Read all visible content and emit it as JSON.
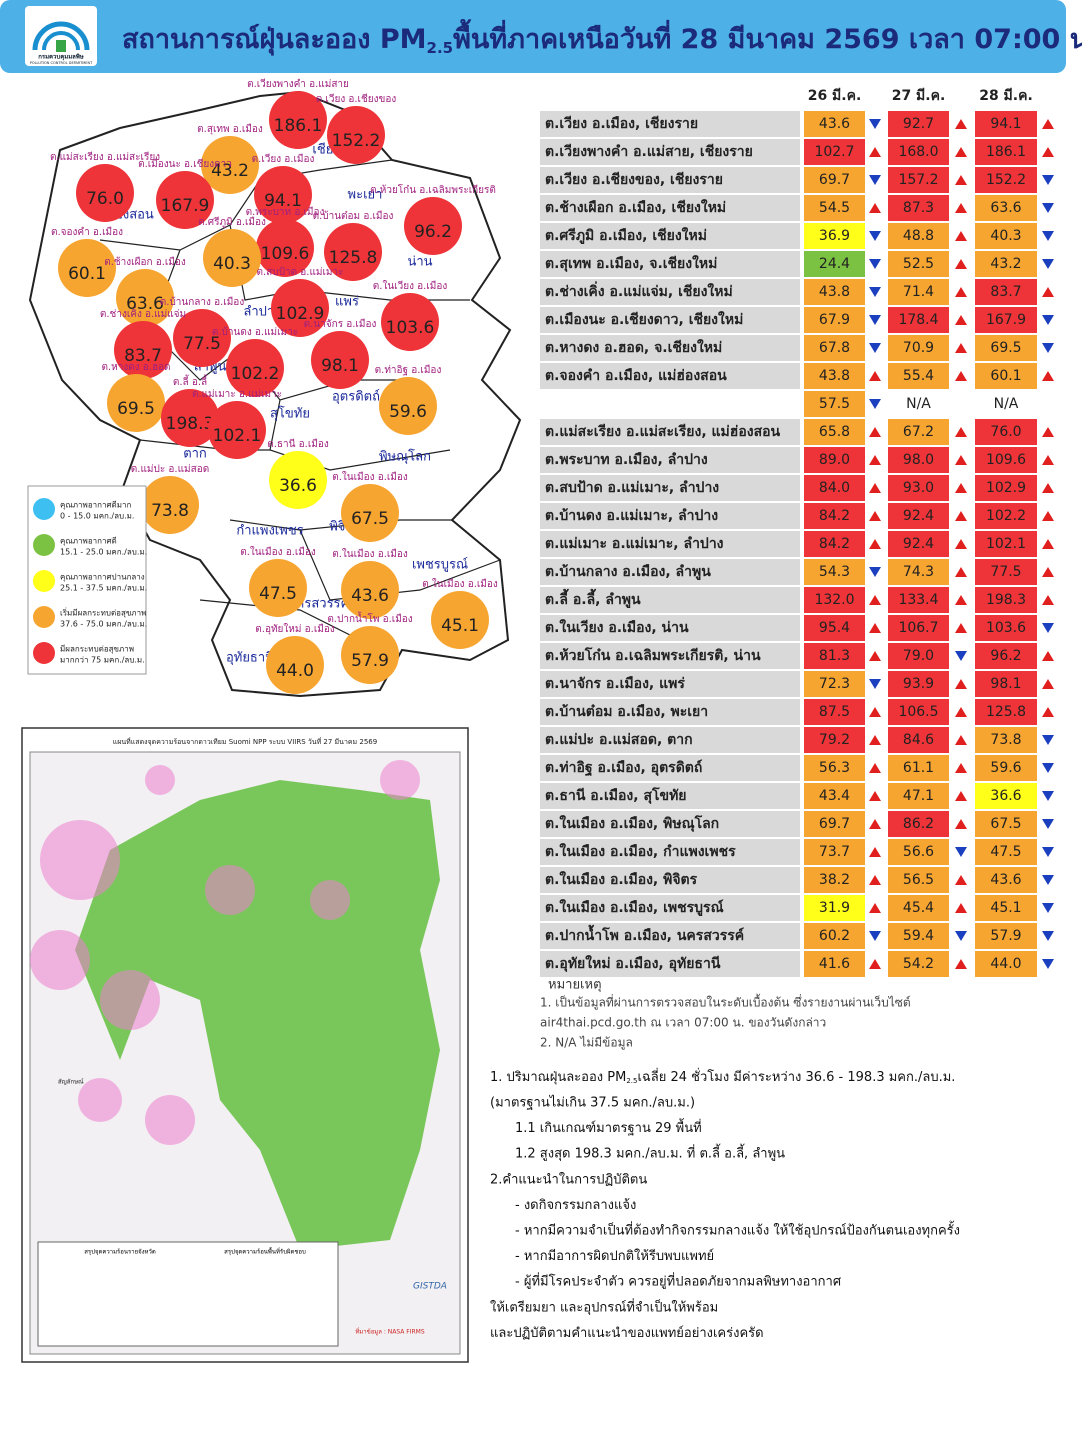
{
  "header": {
    "org_name": "กรมควบคุมมลพิษ",
    "org_name_en": "POLLUTION CONTROL DEPARTMENT",
    "title_main": "สถานการณ์ฝุ่นละออง PM",
    "title_sub": "2.5",
    "title_rest": "พื้นที่ภาคเหนือวันที่ 28 มีนาคม 2569 เวลา 07:00 น."
  },
  "map": {
    "provinces": [
      "เชียงราย",
      "พะเยา",
      "แม่ฮ่องสอน",
      "น่าน",
      "ลำปาง",
      "แพร่",
      "ลำพูน",
      "อุตรดิตถ์",
      "สุโขทัย",
      "ตาก",
      "พิษณุโลก",
      "กำแพงเพชร",
      "พิจิตร",
      "เพชรบูรณ์",
      "นครสวรรค์",
      "อุทัยธานี"
    ],
    "stations": [
      {
        "label": "ต.เวียงพางคำ อ.แม่สาย",
        "value": "186.1"
      },
      {
        "label": "ต.เวียง อ.เชียงของ",
        "value": "152.2"
      },
      {
        "label": "ต.สุเทพ อ.เมือง",
        "value": "43.2"
      },
      {
        "label": "ต.เวียง อ.เมือง",
        "value": "94.1"
      },
      {
        "label": "ต.แม่สะเรียง อ.แม่สะเรียง",
        "value": "76.0"
      },
      {
        "label": "ต.เมืองนะ อ.เชียงดาว",
        "value": "167.9"
      },
      {
        "label": "ต.ห้วยโก๋น อ.เฉลิมพระเกียรติ",
        "value": "96.2"
      },
      {
        "label": "ต.พระบาท อ.เมือง",
        "value": "109.6"
      },
      {
        "label": "ต.บ้านต๋อม อ.เมือง",
        "value": "125.8"
      },
      {
        "label": "ต.ศรีภูมิ อ.เมือง",
        "value": "40.3"
      },
      {
        "label": "ต.จองคำ อ.เมือง",
        "value": "60.1"
      },
      {
        "label": "ต.ช้างเผือก อ.เมือง",
        "value": "63.6"
      },
      {
        "label": "ต.สบป้าด อ.แม่เมาะ",
        "value": "102.9"
      },
      {
        "label": "ต.บ้านกลาง อ.เมือง",
        "value": "77.5"
      },
      {
        "label": "ต.ในเวียง อ.เมือง",
        "value": "103.6"
      },
      {
        "label": "ต.ช่างเคิ่ง อ.แม่แจ่ม",
        "value": "83.7"
      },
      {
        "label": "ต.นาจักร อ.เมือง",
        "value": "98.1"
      },
      {
        "label": "ต.บ้านดง อ.แม่เมาะ",
        "value": "102.2"
      },
      {
        "label": "ต.หางดง อ.ฮอด",
        "value": "69.5"
      },
      {
        "label": "ต.ลี้ อ.ลี้",
        "value": "198.3"
      },
      {
        "label": "ต.แม่เมาะ อ.แม่เมาะ",
        "value": "102.1"
      },
      {
        "label": "ต.ท่าอิฐ อ.เมือง",
        "value": "59.6"
      },
      {
        "label": "ต.ธานี อ.เมือง",
        "value": "36.6"
      },
      {
        "label": "ต.แม่ปะ อ.แม่สอด",
        "value": "73.8"
      },
      {
        "label": "ต.ในเมือง อ.เมือง",
        "value": "67.5"
      },
      {
        "label": "ต.ในเมือง อ.เมือง",
        "value": "47.5"
      },
      {
        "label": "ต.ในเมือง อ.เมือง",
        "value": "43.6"
      },
      {
        "label": "ต.ในเมือง อ.เมือง",
        "value": "45.1"
      },
      {
        "label": "ต.อุทัยใหม่ อ.เมือง",
        "value": "44.0"
      },
      {
        "label": "ต.ปากน้ำโพ อ.เมือง",
        "value": "57.9"
      }
    ],
    "legend": [
      {
        "label": "คุณภาพอากาศดีมาก",
        "range": "0 - 15.0 มคก./ลบ.ม.",
        "color": "#3dbff2"
      },
      {
        "label": "คุณภาพอากาศดี",
        "range": "15.1 - 25.0 มคก./ลบ.ม.",
        "color": "#7cc242"
      },
      {
        "label": "คุณภาพอากาศปานกลาง",
        "range": "25.1 - 37.5 มคก./ลบ.ม.",
        "color": "#ffff1a"
      },
      {
        "label": "เริ่มมีผลกระทบต่อสุขภาพ",
        "range": "37.6 - 75.0 มคก./ลบ.ม.",
        "color": "#f7a531"
      },
      {
        "label": "มีผลกระทบต่อสุขภาพ",
        "range": "มากกว่า 75 มคก./ลบ.ม.",
        "color": "#ee3438"
      }
    ]
  },
  "satellite": {
    "title": "แผนที่แสดงจุดความร้อนจากดาวเทียม Suomi NPP ระบบ VIIRS  วันที่ 27 มีนาคม 2569",
    "legend_title": "สัญลักษณ์",
    "summary_province": "สรุปจุดความร้อนรายจังหวัด",
    "summary_area": "สรุปจุดความร้อนพื้นที่รับผิดชอบ",
    "agency": "GISTDA",
    "source": "ที่มาข้อมูล : NASA FIRMS"
  },
  "table": {
    "columns": [
      "26 มี.ค.",
      "27 มี.ค.",
      "28 มี.ค."
    ],
    "rows": [
      {
        "station": "ต.เวียง อ.เมือง, เชียงราย",
        "values": [
          "43.6",
          "92.7",
          "94.1"
        ],
        "trends": [
          "down",
          "up",
          "up"
        ]
      },
      {
        "station": "ต.เวียงพางคำ อ.แม่สาย, เชียงราย",
        "values": [
          "102.7",
          "168.0",
          "186.1"
        ],
        "trends": [
          "up",
          "up",
          "up"
        ]
      },
      {
        "station": "ต.เวียง อ.เชียงของ, เชียงราย",
        "values": [
          "69.7",
          "157.2",
          "152.2"
        ],
        "trends": [
          "down",
          "up",
          "down"
        ]
      },
      {
        "station": "ต.ช้างเผือก อ.เมือง, เชียงใหม่",
        "values": [
          "54.5",
          "87.3",
          "63.6"
        ],
        "trends": [
          "up",
          "up",
          "down"
        ]
      },
      {
        "station": "ต.ศรีภูมิ อ.เมือง, เชียงใหม่",
        "values": [
          "36.9",
          "48.8",
          "40.3"
        ],
        "trends": [
          "down",
          "up",
          "down"
        ]
      },
      {
        "station": "ต.สุเทพ อ.เมือง, จ.เชียงใหม่",
        "values": [
          "24.4",
          "52.5",
          "43.2"
        ],
        "trends": [
          "down",
          "up",
          "down"
        ]
      },
      {
        "station": "ต.ช่างเคิ่ง อ.แม่แจ่ม, เชียงใหม่",
        "values": [
          "43.8",
          "71.4",
          "83.7"
        ],
        "trends": [
          "down",
          "up",
          "up"
        ]
      },
      {
        "station": "ต.เมืองนะ อ.เชียงดาว, เชียงใหม่",
        "values": [
          "67.9",
          "178.4",
          "167.9"
        ],
        "trends": [
          "down",
          "up",
          "down"
        ]
      },
      {
        "station": "ต.หางดง อ.ฮอด, จ.เชียงใหม่",
        "values": [
          "67.8",
          "70.9",
          "69.5"
        ],
        "trends": [
          "down",
          "up",
          "down"
        ]
      },
      {
        "station": "ต.จองคำ อ.เมือง, แม่ฮ่องสอน",
        "values": [
          "43.8",
          "55.4",
          "60.1"
        ],
        "trends": [
          "up",
          "up",
          "up"
        ]
      },
      {
        "station": null,
        "values": [
          "57.5",
          "N/A",
          "N/A"
        ],
        "trends": [
          "down",
          null,
          null
        ]
      },
      {
        "station": "ต.แม่สะเรียง อ.แม่สะเรียง, แม่ฮ่องสอน",
        "values": [
          "65.8",
          "67.2",
          "76.0"
        ],
        "trends": [
          "up",
          "up",
          "up"
        ]
      },
      {
        "station": "ต.พระบาท อ.เมือง, ลำปาง",
        "values": [
          "89.0",
          "98.0",
          "109.6"
        ],
        "trends": [
          "up",
          "up",
          "up"
        ]
      },
      {
        "station": "ต.สบป้าด อ.แม่เมาะ, ลำปาง",
        "values": [
          "84.0",
          "93.0",
          "102.9"
        ],
        "trends": [
          "up",
          "up",
          "up"
        ]
      },
      {
        "station": "ต.บ้านดง อ.แม่เมาะ, ลำปาง",
        "values": [
          "84.2",
          "92.4",
          "102.2"
        ],
        "trends": [
          "up",
          "up",
          "up"
        ]
      },
      {
        "station": "ต.แม่เมาะ อ.แม่เมาะ, ลำปาง",
        "values": [
          "84.2",
          "92.4",
          "102.1"
        ],
        "trends": [
          "up",
          "up",
          "up"
        ]
      },
      {
        "station": "ต.บ้านกลาง อ.เมือง, ลำพูน",
        "values": [
          "54.3",
          "74.3",
          "77.5"
        ],
        "trends": [
          "down",
          "up",
          "up"
        ]
      },
      {
        "station": "ต.ลี้ อ.ลี้, ลำพูน",
        "values": [
          "132.0",
          "133.4",
          "198.3"
        ],
        "trends": [
          "up",
          "up",
          "up"
        ]
      },
      {
        "station": "ต.ในเวียง อ.เมือง, น่าน",
        "values": [
          "95.4",
          "106.7",
          "103.6"
        ],
        "trends": [
          "up",
          "up",
          "down"
        ]
      },
      {
        "station": "ต.ห้วยโก๋น อ.เฉลิมพระเกียรติ, น่าน",
        "values": [
          "81.3",
          "79.0",
          "96.2"
        ],
        "trends": [
          "up",
          "down",
          "up"
        ]
      },
      {
        "station": "ต.นาจักร อ.เมือง, แพร่",
        "values": [
          "72.3",
          "93.9",
          "98.1"
        ],
        "trends": [
          "down",
          "up",
          "up"
        ]
      },
      {
        "station": "ต.บ้านต๋อม อ.เมือง, พะเยา",
        "values": [
          "87.5",
          "106.5",
          "125.8"
        ],
        "trends": [
          "up",
          "up",
          "up"
        ]
      },
      {
        "station": "ต.แม่ปะ อ.แม่สอด, ตาก",
        "values": [
          "79.2",
          "84.6",
          "73.8"
        ],
        "trends": [
          "up",
          "up",
          "down"
        ]
      },
      {
        "station": "ต.ท่าอิฐ อ.เมือง, อุตรดิตถ์",
        "values": [
          "56.3",
          "61.1",
          "59.6"
        ],
        "trends": [
          "up",
          "up",
          "down"
        ]
      },
      {
        "station": "ต.ธานี อ.เมือง, สุโขทัย",
        "values": [
          "43.4",
          "47.1",
          "36.6"
        ],
        "trends": [
          "up",
          "up",
          "down"
        ]
      },
      {
        "station": "ต.ในเมือง อ.เมือง, พิษณุโลก",
        "values": [
          "69.7",
          "86.2",
          "67.5"
        ],
        "trends": [
          "up",
          "up",
          "down"
        ]
      },
      {
        "station": "ต.ในเมือง อ.เมือง, กำแพงเพชร",
        "values": [
          "73.7",
          "56.6",
          "47.5"
        ],
        "trends": [
          "up",
          "down",
          "down"
        ]
      },
      {
        "station": "ต.ในเมือง อ.เมือง, พิจิตร",
        "values": [
          "38.2",
          "56.5",
          "43.6"
        ],
        "trends": [
          "up",
          "up",
          "down"
        ]
      },
      {
        "station": "ต.ในเมือง อ.เมือง, เพชรบูรณ์",
        "values": [
          "31.9",
          "45.4",
          "45.1"
        ],
        "trends": [
          "up",
          "up",
          "down"
        ]
      },
      {
        "station": "ต.ปากน้ำโพ อ.เมือง, นครสวรรค์",
        "values": [
          "60.2",
          "59.4",
          "57.9"
        ],
        "trends": [
          "down",
          "down",
          "down"
        ]
      },
      {
        "station": "ต.อุทัยใหม่ อ.เมือง, อุทัยธานี",
        "values": [
          "41.6",
          "54.2",
          "44.0"
        ],
        "trends": [
          "up",
          "up",
          "down"
        ]
      }
    ]
  },
  "notes": {
    "title": "หมายเหตุ",
    "lines": [
      "1. เป็นข้อมูลที่ผ่านการตรวจสอบในระดับเบื้องต้น  ซึ่งรายงานผ่านเว็บไซต์",
      "air4thai.pcd.go.th  ณ  เวลา 07:00  น.  ของวันดังกล่าว",
      "2.  N/A  ไม่มีข้อมูล"
    ]
  },
  "summary": {
    "pm_prefix": "1. ปริมาณฝุ่นละออง PM",
    "pm_sub": "2.5",
    "pm_rest": "เฉลี่ย 24 ชั่วโมง  มีค่าระหว่าง 36.6 - 198.3 มคก./ลบ.ม.",
    "lines": [
      "(มาตรฐานไม่เกิน 37.5 มคก./ลบ.ม.)",
      "1.1 เกินเกณฑ์มาตรฐาน 29 พื้นที่",
      "1.2 สูงสุด 198.3 มคก./ลบ.ม. ที่ ต.ลี้ อ.ลี้, ลำพูน",
      "2.คำแนะนำในการปฏิบัติตน",
      "-  งดกิจกรรมกลางแจ้ง",
      "-  หากมีความจำเป็นที่ต้องทำกิจกรรมกลางแจ้ง ให้ใช้อุปกรณ์ป้องกันตนเองทุกครั้ง",
      "-  หากมีอาการผิดปกติให้รีบพบแพทย์",
      "-  ผู้ที่มีโรคประจำตัว  ควรอยู่ที่ปลอดภัยจากมลพิษทางอากาศ",
      "ให้เตรียมยา  และอุปกรณ์ที่จำเป็นให้พร้อม",
      "และปฏิบัติตามคำแนะนำของแพทย์อย่างเคร่งครัด"
    ]
  }
}
